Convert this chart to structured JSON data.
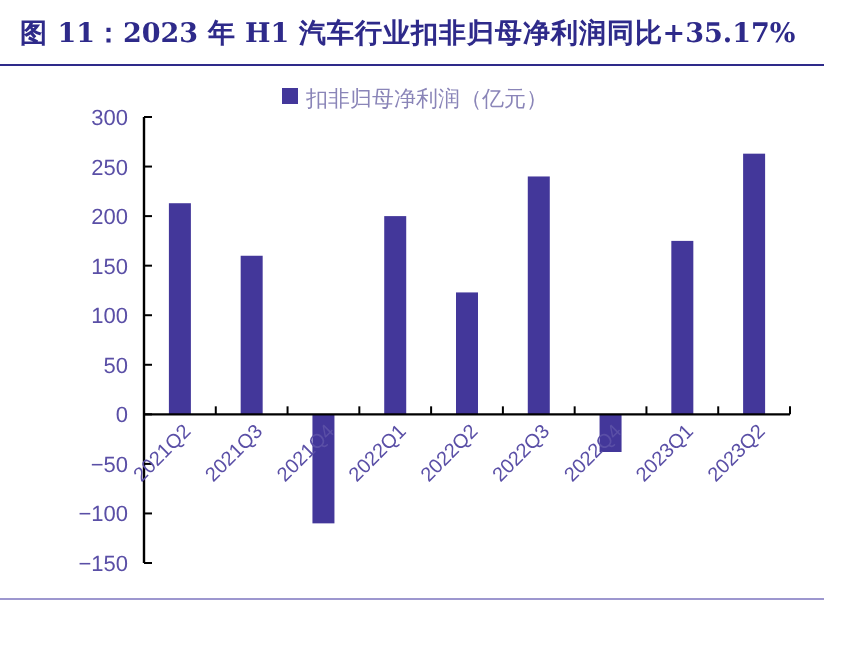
{
  "chart_data": {
    "type": "bar",
    "title": "图 11：2023 年 H1 汽车行业扣非归母净利润同比+35.17%",
    "categories": [
      "2021Q2",
      "2021Q3",
      "2021Q4",
      "2022Q1",
      "2022Q2",
      "2022Q3",
      "2022Q4",
      "2023Q1",
      "2023Q2"
    ],
    "series": [
      {
        "name": "扣非归母净利润（亿元）",
        "color": "#43379a",
        "values": [
          213,
          160,
          -110,
          200,
          123,
          240,
          -38,
          175,
          263
        ]
      }
    ],
    "ylim": [
      -150,
      300
    ],
    "yticks": [
      -150,
      -100,
      -50,
      0,
      50,
      100,
      150,
      200,
      250,
      300
    ],
    "legend": "top",
    "grid": false
  }
}
